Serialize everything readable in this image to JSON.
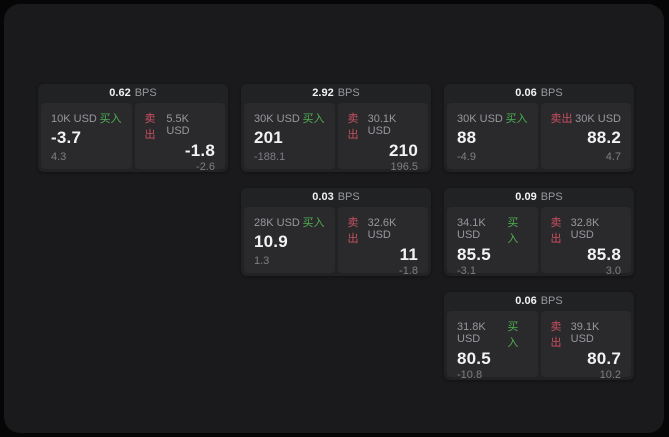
{
  "labels": {
    "bps_unit": "BPS",
    "buy": "买入",
    "sell": "卖出"
  },
  "colors": {
    "page_bg": "#060607",
    "window_bg": "#1a1a1c",
    "card_bg": "#212224",
    "panel_bg": "#2a2a2d",
    "buy_green": "#4caf50",
    "sell_red": "#c94f5e",
    "text_white": "#f2f2f4",
    "text_gray": "#98989d",
    "text_dim": "#7e7e83"
  },
  "cards": [
    {
      "col": 1,
      "row": 1,
      "bps": "0.62",
      "buy": {
        "size": "10K USD",
        "price": "-3.7",
        "delta": "4.3"
      },
      "sell": {
        "size": "5.5K USD",
        "price": "-1.8",
        "delta": "-2.6"
      }
    },
    {
      "col": 2,
      "row": 1,
      "bps": "2.92",
      "buy": {
        "size": "30K USD",
        "price": "201",
        "delta": "-188.1"
      },
      "sell": {
        "size": "30.1K USD",
        "price": "210",
        "delta": "196.5"
      }
    },
    {
      "col": 3,
      "row": 1,
      "bps": "0.06",
      "buy": {
        "size": "30K USD",
        "price": "88",
        "delta": "-4.9"
      },
      "sell": {
        "size": "30K USD",
        "price": "88.2",
        "delta": "4.7"
      }
    },
    {
      "col": 2,
      "row": 2,
      "bps": "0.03",
      "buy": {
        "size": "28K USD",
        "price": "10.9",
        "delta": "1.3"
      },
      "sell": {
        "size": "32.6K USD",
        "price": "11",
        "delta": "-1.8"
      }
    },
    {
      "col": 3,
      "row": 2,
      "bps": "0.09",
      "buy": {
        "size": "34.1K USD",
        "price": "85.5",
        "delta": "-3.1"
      },
      "sell": {
        "size": "32.8K USD",
        "price": "85.8",
        "delta": "3.0"
      }
    },
    {
      "col": 3,
      "row": 3,
      "bps": "0.06",
      "buy": {
        "size": "31.8K USD",
        "price": "80.5",
        "delta": "-10.8"
      },
      "sell": {
        "size": "39.1K USD",
        "price": "80.7",
        "delta": "10.2"
      }
    }
  ]
}
